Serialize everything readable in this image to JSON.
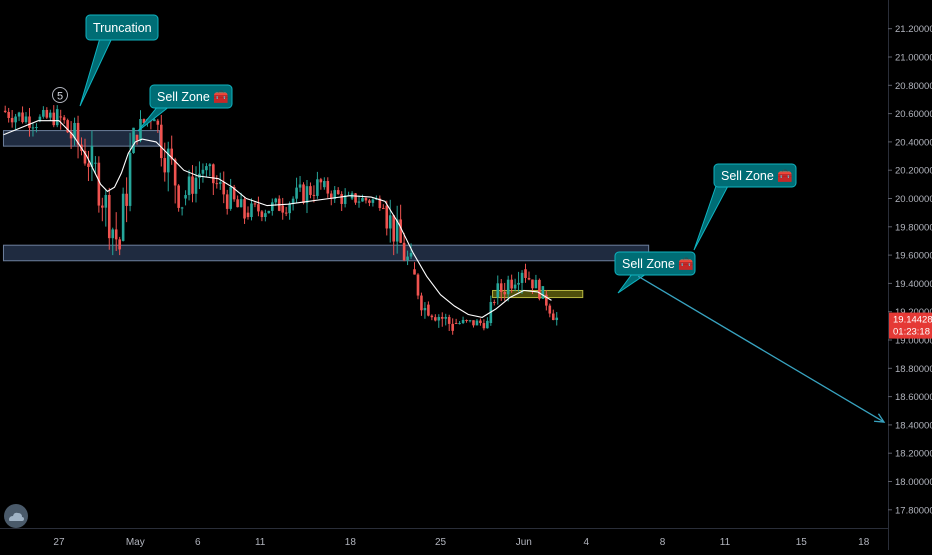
{
  "chart_data": {
    "type": "candlestick",
    "symbol_price": {
      "last_price_label": "19.14428",
      "countdown_label": "01:23:18",
      "last_price": 19.14428
    },
    "ylim": [
      17.7,
      21.3
    ],
    "yticks": [
      {
        "value": 21.2,
        "label": "21.20000"
      },
      {
        "value": 21.0,
        "label": "21.00000"
      },
      {
        "value": 20.8,
        "label": "20.80000"
      },
      {
        "value": 20.6,
        "label": "20.60000"
      },
      {
        "value": 20.4,
        "label": "20.40000"
      },
      {
        "value": 20.2,
        "label": "20.20000"
      },
      {
        "value": 20.0,
        "label": "20.00000"
      },
      {
        "value": 19.8,
        "label": "19.80000"
      },
      {
        "value": 19.6,
        "label": "19.60000"
      },
      {
        "value": 19.4,
        "label": "19.40000"
      },
      {
        "value": 19.2,
        "label": "19.20000"
      },
      {
        "value": 19.0,
        "label": "19.00000"
      },
      {
        "value": 18.8,
        "label": "18.80000"
      },
      {
        "value": 18.6,
        "label": "18.60000"
      },
      {
        "value": 18.4,
        "label": "18.40000"
      },
      {
        "value": 18.2,
        "label": "18.20000"
      },
      {
        "value": 18.0,
        "label": "18.00000"
      },
      {
        "value": 17.8,
        "label": "17.80000"
      }
    ],
    "xticks": [
      {
        "index": 0,
        "label": "27"
      },
      {
        "index": 11,
        "label": "May"
      },
      {
        "index": 20,
        "label": "6"
      },
      {
        "index": 29,
        "label": "11"
      },
      {
        "index": 42,
        "label": "18"
      },
      {
        "index": 55,
        "label": "25"
      },
      {
        "index": 67,
        "label": "Jun"
      },
      {
        "index": 76,
        "label": "4"
      },
      {
        "index": 87,
        "label": "8"
      },
      {
        "index": 96,
        "label": "11"
      },
      {
        "index": 107,
        "label": "15"
      },
      {
        "index": 116,
        "label": "18"
      }
    ],
    "xlim": [
      -8.5,
      119.5
    ],
    "ohlc_segments": [
      {
        "start": -8,
        "end": -3,
        "open": 20.62,
        "close": 20.55,
        "high": 20.72,
        "low": 20.4
      },
      {
        "start": -3,
        "end": 0,
        "open": 20.55,
        "close": 20.58,
        "high": 20.66,
        "low": 20.36
      },
      {
        "start": 0,
        "end": 5,
        "open": 20.58,
        "close": 20.25,
        "high": 20.68,
        "low": 20.1
      },
      {
        "start": 5,
        "end": 9,
        "open": 20.25,
        "close": 19.65,
        "high": 20.3,
        "low": 19.6
      },
      {
        "start": 9,
        "end": 11,
        "open": 19.7,
        "close": 20.45,
        "high": 20.5,
        "low": 19.68
      },
      {
        "start": 11,
        "end": 14,
        "open": 20.45,
        "close": 20.62,
        "high": 20.75,
        "low": 20.38
      },
      {
        "start": 14,
        "end": 18,
        "open": 20.55,
        "close": 20.0,
        "high": 20.6,
        "low": 19.88
      },
      {
        "start": 18,
        "end": 21,
        "open": 20.0,
        "close": 20.22,
        "high": 20.35,
        "low": 19.9
      },
      {
        "start": 21,
        "end": 27,
        "open": 20.2,
        "close": 19.88,
        "high": 20.25,
        "low": 19.82
      },
      {
        "start": 27,
        "end": 32,
        "open": 19.9,
        "close": 19.95,
        "high": 20.05,
        "low": 19.75
      },
      {
        "start": 32,
        "end": 38,
        "open": 19.95,
        "close": 20.1,
        "high": 20.22,
        "low": 19.85
      },
      {
        "start": 38,
        "end": 42,
        "open": 20.08,
        "close": 19.98,
        "high": 20.15,
        "low": 19.88
      },
      {
        "start": 42,
        "end": 47,
        "open": 20.0,
        "close": 19.98,
        "high": 20.12,
        "low": 19.9
      },
      {
        "start": 47,
        "end": 51,
        "open": 19.95,
        "close": 19.5,
        "high": 20.02,
        "low": 19.45
      },
      {
        "start": 51,
        "end": 53,
        "open": 19.5,
        "close": 19.22,
        "high": 19.55,
        "low": 19.15
      },
      {
        "start": 53,
        "end": 57,
        "open": 19.25,
        "close": 19.1,
        "high": 19.35,
        "low": 19.03
      },
      {
        "start": 57,
        "end": 62,
        "open": 19.12,
        "close": 19.12,
        "high": 19.2,
        "low": 19.03
      },
      {
        "start": 62,
        "end": 63,
        "open": 19.12,
        "close": 19.3,
        "high": 19.38,
        "low": 19.1
      },
      {
        "start": 63,
        "end": 67,
        "open": 19.3,
        "close": 19.52,
        "high": 19.65,
        "low": 19.25
      },
      {
        "start": 67,
        "end": 70,
        "open": 19.5,
        "close": 19.32,
        "high": 19.55,
        "low": 19.28
      },
      {
        "start": 70,
        "end": 72,
        "open": 19.32,
        "close": 19.15,
        "high": 19.38,
        "low": 19.1
      }
    ],
    "moving_average": {
      "color": "#ffffff",
      "points": [
        {
          "x": -8,
          "y": 20.45
        },
        {
          "x": -3,
          "y": 20.55
        },
        {
          "x": 0,
          "y": 20.55
        },
        {
          "x": 2,
          "y": 20.45
        },
        {
          "x": 4,
          "y": 20.3
        },
        {
          "x": 6,
          "y": 20.1
        },
        {
          "x": 7,
          "y": 20.05
        },
        {
          "x": 8,
          "y": 20.08
        },
        {
          "x": 9,
          "y": 20.18
        },
        {
          "x": 10,
          "y": 20.32
        },
        {
          "x": 11,
          "y": 20.4
        },
        {
          "x": 12,
          "y": 20.42
        },
        {
          "x": 14,
          "y": 20.4
        },
        {
          "x": 16,
          "y": 20.3
        },
        {
          "x": 18,
          "y": 20.2
        },
        {
          "x": 20,
          "y": 20.16
        },
        {
          "x": 23,
          "y": 20.14
        },
        {
          "x": 25,
          "y": 20.08
        },
        {
          "x": 27,
          "y": 20.0
        },
        {
          "x": 30,
          "y": 19.95
        },
        {
          "x": 33,
          "y": 19.96
        },
        {
          "x": 36,
          "y": 19.98
        },
        {
          "x": 39,
          "y": 20.0
        },
        {
          "x": 42,
          "y": 20.02
        },
        {
          "x": 45,
          "y": 20.01
        },
        {
          "x": 47,
          "y": 19.98
        },
        {
          "x": 49,
          "y": 19.82
        },
        {
          "x": 51,
          "y": 19.62
        },
        {
          "x": 53,
          "y": 19.45
        },
        {
          "x": 55,
          "y": 19.32
        },
        {
          "x": 57,
          "y": 19.24
        },
        {
          "x": 59,
          "y": 19.18
        },
        {
          "x": 61,
          "y": 19.16
        },
        {
          "x": 63,
          "y": 19.22
        },
        {
          "x": 65,
          "y": 19.3
        },
        {
          "x": 67,
          "y": 19.35
        },
        {
          "x": 69,
          "y": 19.34
        },
        {
          "x": 71,
          "y": 19.28
        }
      ]
    },
    "zones": [
      {
        "name": "upper-zone",
        "x0": -8,
        "x1": 14.5,
        "y0": 20.37,
        "y1": 20.48,
        "color": "#2a3a55",
        "border": "#6d7f9c"
      },
      {
        "name": "middle-zone",
        "x0": -8,
        "x1": 85,
        "y0": 19.56,
        "y1": 19.67,
        "color": "#2a3a55",
        "border": "#6d7f9c"
      },
      {
        "name": "small-zone",
        "x0": 62.5,
        "x1": 75.5,
        "y0": 19.3,
        "y1": 19.35,
        "color": "#6a6a10",
        "border": "#b6b640"
      }
    ],
    "annotations": [
      {
        "name": "truncation-callout",
        "text": "Truncation"
      },
      {
        "name": "sell-zone-callout-1",
        "text": "Sell Zone 🧰"
      },
      {
        "name": "sell-zone-callout-2",
        "text": "Sell Zone 🧰"
      },
      {
        "name": "sell-zone-callout-3",
        "text": "Sell Zone 🧰"
      },
      {
        "name": "wave-5-label",
        "text": "5"
      }
    ],
    "arrow": {
      "x0": 83.5,
      "y0": 19.45,
      "x1": 119.5,
      "y1": 18.42
    },
    "colors": {
      "up": "#26a69a",
      "down": "#ef5350",
      "callout_bg": "#006d75",
      "callout_border": "#0fb3c0",
      "price_badge": "#e53935",
      "axis_text": "#b2b5be"
    }
  }
}
